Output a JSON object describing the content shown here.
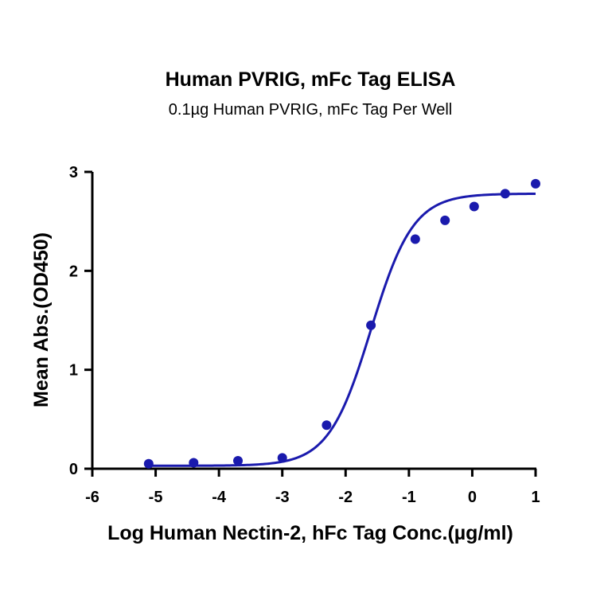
{
  "chart_data": {
    "type": "scatter",
    "title": "Human PVRIG, mFc Tag ELISA",
    "subtitle": "0.1µg Human PVRIG, mFc Tag Per Well",
    "xlabel": "Log Human Nectin-2, hFc Tag Conc.(µg/ml)",
    "ylabel": "Mean Abs.(OD450)",
    "xlim": [
      -6,
      1
    ],
    "ylim": [
      0,
      3
    ],
    "x_ticks": [
      -6,
      -5,
      -4,
      -3,
      -2,
      -1,
      0,
      1
    ],
    "x_tick_labels": [
      "-6",
      "-5",
      "-4",
      "-3",
      "-2",
      "-1",
      "0",
      "1"
    ],
    "y_ticks": [
      0,
      1,
      2,
      3
    ],
    "y_tick_labels": [
      "0",
      "1",
      "2",
      "3"
    ],
    "grid": false,
    "legend": "none",
    "color": "#1a1aad",
    "series": [
      {
        "x": [
          -5.11,
          -4.4,
          -3.7,
          -3.0,
          -2.3,
          -1.6,
          -0.9,
          -0.43,
          0.03,
          0.52,
          1.0
        ],
        "y": [
          0.05,
          0.06,
          0.08,
          0.11,
          0.44,
          1.45,
          2.32,
          2.51,
          2.65,
          2.78,
          2.88
        ]
      }
    ],
    "fit_curve": {
      "model": "4PL",
      "bottom": 0.03,
      "top": 2.78,
      "log_ec50": -1.6,
      "hill": 1.3
    }
  }
}
